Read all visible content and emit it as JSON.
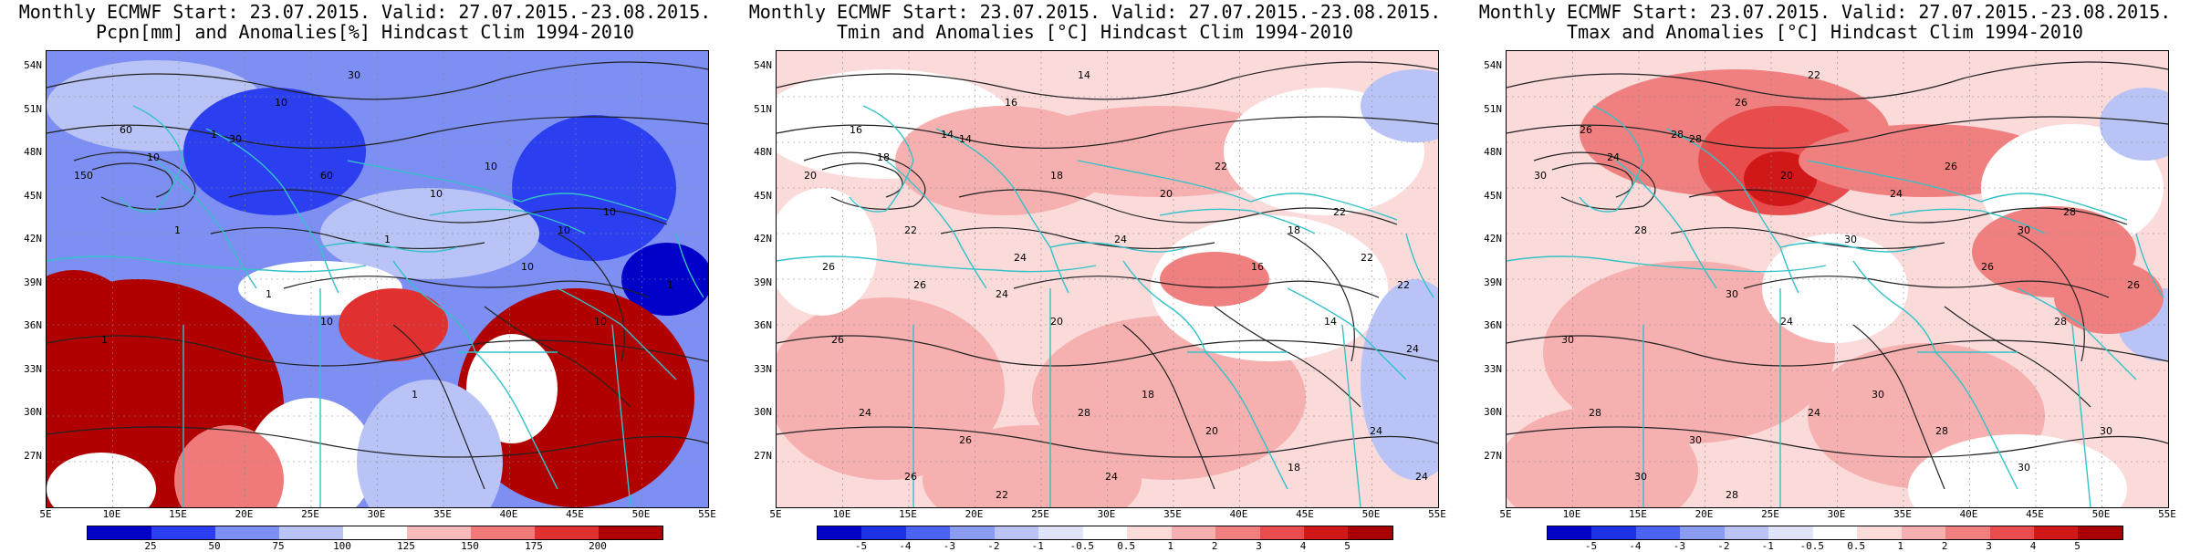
{
  "panels": [
    {
      "id": "pcpn",
      "title_line1": "Monthly ECMWF Start: 23.07.2015. Valid: 27.07.2015.-23.08.2015.",
      "title_line2": "Pcpn[mm] and Anomalies[%] Hindcast Clim 1994-2010",
      "contour_labels": [
        "30",
        "60",
        "10",
        "1",
        "150",
        "10",
        "60",
        "30",
        "10",
        "10",
        "1",
        "10",
        "10",
        "1",
        "10",
        "10",
        "1",
        "1",
        "1",
        "10",
        "1"
      ],
      "colorbar": {
        "labels": [
          "25",
          "50",
          "75",
          "100",
          "125",
          "150",
          "175",
          "200"
        ],
        "colors": [
          "#0000c8",
          "#2b3ef0",
          "#7d8ff2",
          "#b9c3f5",
          "#ffffff",
          "#f7b9b9",
          "#f07a7a",
          "#e03030",
          "#b00000"
        ]
      }
    },
    {
      "id": "tmin",
      "title_line1": "Monthly ECMWF Start: 23.07.2015. Valid: 27.07.2015.-23.08.2015.",
      "title_line2": "Tmin and Anomalies [°C] Hindcast Clim 1994-2010",
      "contour_labels": [
        "14",
        "16",
        "16",
        "14",
        "20",
        "18",
        "18",
        "14",
        "20",
        "22",
        "24",
        "18",
        "22",
        "24",
        "20",
        "16",
        "22",
        "26",
        "18",
        "14",
        "22",
        "24",
        "26",
        "28",
        "20",
        "18",
        "24",
        "26",
        "22",
        "24",
        "24",
        "26",
        "26",
        "24",
        "22",
        "24"
      ],
      "colorbar": {
        "labels": [
          "-5",
          "-4",
          "-3",
          "-2",
          "-1",
          "-0.5",
          "0.5",
          "1",
          "2",
          "3",
          "4",
          "5"
        ],
        "colors": [
          "#0000c8",
          "#1e32e6",
          "#4a63f0",
          "#8a9cf2",
          "#b9c3f5",
          "#dfe4fa",
          "#ffffff",
          "#fbdada",
          "#f7b0b0",
          "#f08080",
          "#e84c4c",
          "#d01818",
          "#a80000"
        ]
      }
    },
    {
      "id": "tmax",
      "title_line1": "Monthly ECMWF Start: 23.07.2015. Valid: 27.07.2015.-23.08.2015.",
      "title_line2": "Tmax and Anomalies [°C] Hindcast Clim 1994-2010",
      "contour_labels": [
        "22",
        "26",
        "26",
        "28",
        "30",
        "24",
        "20",
        "28",
        "24",
        "26",
        "30",
        "30",
        "28",
        "30",
        "24",
        "26",
        "28",
        "30",
        "30",
        "28",
        "26",
        "28",
        "30",
        "24",
        "28",
        "30",
        "30",
        "30",
        "28"
      ],
      "colorbar": {
        "labels": [
          "-5",
          "-4",
          "-3",
          "-2",
          "-1",
          "-0.5",
          "0.5",
          "1",
          "2",
          "3",
          "4",
          "5"
        ],
        "colors": [
          "#0000c8",
          "#1e32e6",
          "#4a63f0",
          "#8a9cf2",
          "#b9c3f5",
          "#dfe4fa",
          "#ffffff",
          "#fbdada",
          "#f7b0b0",
          "#f08080",
          "#e84c4c",
          "#d01818",
          "#a80000"
        ]
      }
    }
  ],
  "lat_labels": [
    "54N",
    "51N",
    "48N",
    "45N",
    "42N",
    "39N",
    "36N",
    "33N",
    "30N",
    "27N"
  ],
  "lon_labels": [
    "5E",
    "10E",
    "15E",
    "20E",
    "25E",
    "30E",
    "35E",
    "40E",
    "45E",
    "50E",
    "55E"
  ]
}
